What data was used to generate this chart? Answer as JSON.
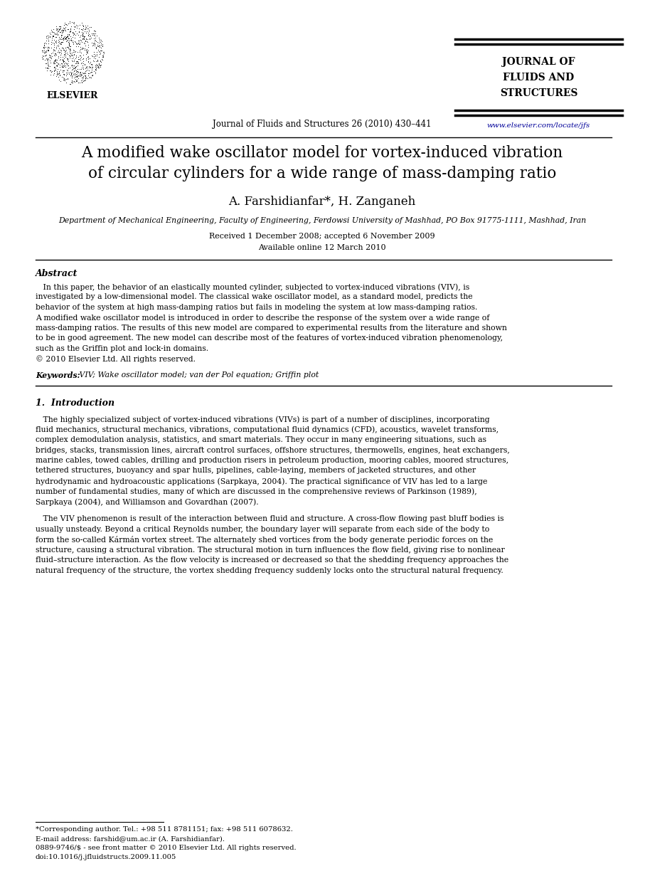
{
  "bg_color": "#ffffff",
  "page_width": 9.07,
  "page_height": 12.38,
  "journal_name_lines": [
    "JOURNAL OF",
    "FLUIDS AND",
    "STRUCTURES"
  ],
  "journal_url": "www.elsevier.com/locate/jfs",
  "journal_cite": "Journal of Fluids and Structures 26 (2010) 430–441",
  "paper_title_line1": "A modified wake oscillator model for vortex-induced vibration",
  "paper_title_line2": "of circular cylinders for a wide range of mass-damping ratio",
  "authors": "A. Farshidianfar*, H. Zanganeh",
  "affiliation": "Department of Mechanical Engineering, Faculty of Engineering, Ferdowsi University of Mashhad, PO Box 91775-1111, Mashhad, Iran",
  "received": "Received 1 December 2008; accepted 6 November 2009",
  "available": "Available online 12 March 2010",
  "abstract_title": "Abstract",
  "keywords_label": "Keywords:",
  "keywords_text": " VIV; Wake oscillator model; van der Pol equation; Griffin plot",
  "section1_title": "1.  Introduction",
  "footnote1": "*Corresponding author. Tel.: +98 511 8781151; fax: +98 511 6078632.",
  "footnote2": "E-mail address: farshid@um.ac.ir (A. Farshidianfar).",
  "footnote3": "0889-9746/$ - see front matter © 2010 Elsevier Ltd. All rights reserved.",
  "footnote4": "doi:10.1016/j.jfluidstructs.2009.11.005",
  "text_color": "#000000",
  "link_color": "#000099",
  "title_fontsize": 15.5,
  "author_fontsize": 12,
  "affil_fontsize": 7.8,
  "small_fontsize": 8.5,
  "body_fontsize": 7.8,
  "abstract_title_fontsize": 9,
  "section_title_fontsize": 9,
  "journal_name_fontsize": 10,
  "footnote_fontsize": 7.2
}
